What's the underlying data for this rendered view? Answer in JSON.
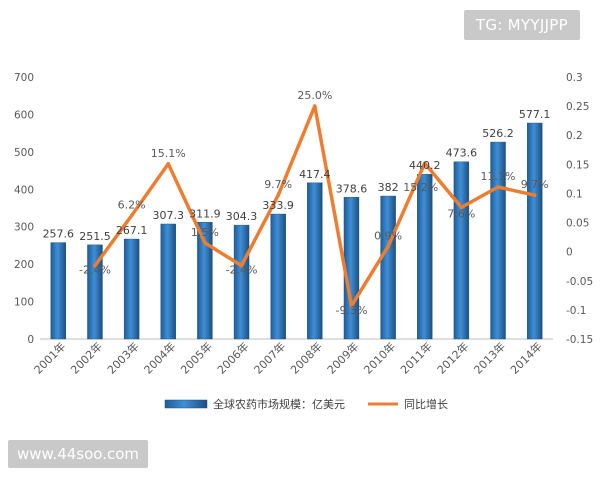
{
  "watermark_top": "TG: MYYJJPP",
  "watermark_bottom": "www.44soo.com",
  "colors": {
    "bar_fill": "#2e75b6",
    "bar_dark": "#1f4e79",
    "line": "#ed7d31",
    "axis": "#bfbfbf",
    "text": "#595959"
  },
  "chart_data": {
    "type": "bar+line",
    "categories": [
      "2001年",
      "2002年",
      "2003年",
      "2004年",
      "2005年",
      "2006年",
      "2007年",
      "2008年",
      "2009年",
      "2010年",
      "2011年",
      "2012年",
      "2013年",
      "2014年"
    ],
    "series": [
      {
        "name": "全球农药市场规模：亿美元",
        "type": "bar",
        "axis": "left",
        "values": [
          257.6,
          251.5,
          267.1,
          307.3,
          311.9,
          304.3,
          333.9,
          417.4,
          378.6,
          382,
          440.2,
          473.6,
          526.2,
          577.1
        ],
        "labels": [
          "257.6",
          "251.5",
          "267.1",
          "307.3",
          "311.9",
          "304.3",
          "333.9",
          "417.4",
          "378.6",
          "382",
          "440.2",
          "473.6",
          "526.2",
          "577.1"
        ]
      },
      {
        "name": "同比增长",
        "type": "line",
        "axis": "right",
        "values": [
          null,
          -0.024,
          0.062,
          0.151,
          0.015,
          -0.024,
          0.097,
          0.25,
          -0.093,
          0.009,
          0.152,
          0.076,
          0.111,
          0.097
        ],
        "labels": [
          "",
          "-2.4%",
          "6.2%",
          "15.1%",
          "1.5%",
          "-2.4%",
          "9.7%",
          "25.0%",
          "-9.3%",
          "0.9%",
          "15.2%",
          "7.6%",
          "11.1%",
          "9.7%"
        ]
      }
    ],
    "y_left": {
      "min": 0,
      "max": 700,
      "ticks": [
        "0",
        "100",
        "200",
        "300",
        "400",
        "500",
        "600",
        "700"
      ]
    },
    "y_right": {
      "min": -0.15,
      "max": 0.3,
      "ticks": [
        "-0.15",
        "-0.1",
        "-0.05",
        "0",
        "0.05",
        "0.1",
        "0.15",
        "0.2",
        "0.25",
        "0.3"
      ]
    },
    "legend": {
      "position": "bottom"
    }
  }
}
